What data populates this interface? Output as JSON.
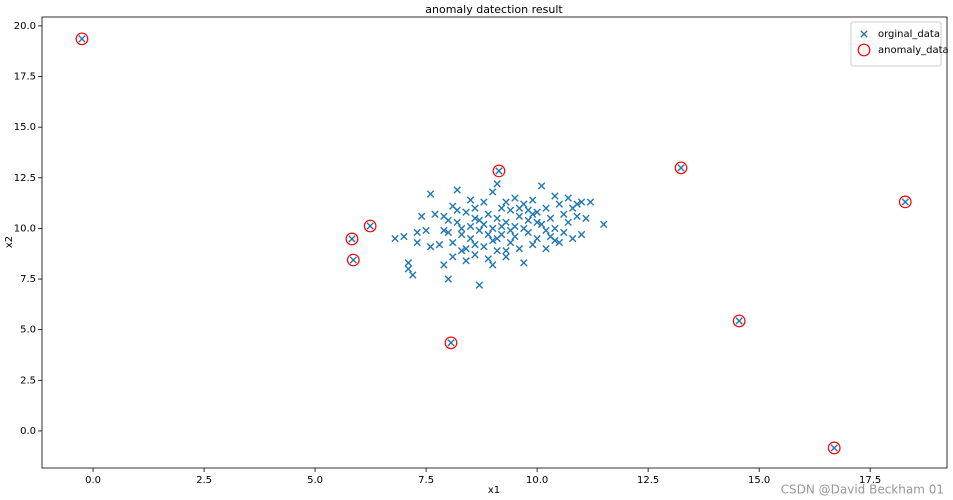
{
  "chart_data": {
    "type": "scatter",
    "title": "anomaly datection result",
    "x_label": "x1",
    "y_label": "x2",
    "xlim": [
      -1.15,
      19.23
    ],
    "ylim": [
      -1.83,
      20.44
    ],
    "xticks": [
      {
        "value": 0,
        "label": "0.0"
      },
      2.5,
      {
        "value": 5,
        "label": "5.0"
      },
      7.5,
      {
        "value": 10,
        "label": "10.0"
      },
      12.5,
      {
        "value": 15,
        "label": "15.0"
      },
      17.5
    ],
    "yticks": [
      {
        "value": 0,
        "label": "0.0"
      },
      2.5,
      {
        "value": 5,
        "label": "5.0"
      },
      7.5,
      {
        "value": 10,
        "label": "10.0"
      },
      12.5,
      {
        "value": 15,
        "label": "15.0"
      },
      17.5,
      {
        "value": 20,
        "label": "20.0"
      }
    ],
    "legend": "upper right",
    "grid": false,
    "series": [
      {
        "name": "orginal_data",
        "color": "#1f77b4",
        "marker": "x",
        "x": [
          7.0,
          6.8,
          7.1,
          7.2,
          7.1,
          7.3,
          7.4,
          7.5,
          7.6,
          7.7,
          7.8,
          7.9,
          7.9,
          8.0,
          8.0,
          8.1,
          8.1,
          8.2,
          8.2,
          8.3,
          8.3,
          8.4,
          8.4,
          8.5,
          8.5,
          8.6,
          8.6,
          8.7,
          8.7,
          8.7,
          8.8,
          8.8,
          8.9,
          8.9,
          9.0,
          9.0,
          9.0,
          9.1,
          9.1,
          9.1,
          9.2,
          9.2,
          9.3,
          9.3,
          9.4,
          9.4,
          9.5,
          9.5,
          9.6,
          9.6,
          9.7,
          9.7,
          9.8,
          9.8,
          9.9,
          9.9,
          10.0,
          10.0,
          10.1,
          10.1,
          10.2,
          10.2,
          10.3,
          10.3,
          10.4,
          10.4,
          10.5,
          10.5,
          10.6,
          10.6,
          10.7,
          10.7,
          10.8,
          10.8,
          10.9,
          11.0,
          11.0,
          11.1,
          11.2,
          11.5,
          7.6,
          7.9,
          8.2,
          8.4,
          8.6,
          8.8,
          8.9,
          9.0,
          9.2,
          9.3,
          9.5,
          9.6,
          9.8,
          10.0,
          10.2,
          8.1,
          8.5,
          9.4,
          9.7,
          10.9,
          7.3,
          8.0,
          8.3,
          9.1,
          9.9,
          10.4,
          8.6,
          9.3,
          -0.25,
          9.14,
          13.24,
          18.29,
          6.24,
          5.83,
          5.86,
          8.06,
          14.55,
          16.69
        ],
        "y": [
          9.6,
          9.5,
          8.3,
          7.7,
          8.0,
          9.3,
          10.6,
          9.9,
          11.7,
          10.7,
          9.2,
          10.6,
          8.2,
          7.5,
          9.8,
          11.1,
          9.3,
          11.9,
          10.3,
          8.9,
          9.7,
          10.8,
          8.4,
          10.1,
          9.5,
          11.0,
          8.7,
          10.4,
          9.9,
          7.2,
          11.3,
          9.1,
          10.7,
          8.5,
          10.0,
          11.8,
          9.4,
          12.2,
          10.5,
          8.9,
          9.7,
          11.0,
          10.3,
          8.6,
          10.9,
          9.3,
          11.5,
          10.1,
          9.0,
          10.6,
          8.3,
          11.2,
          9.8,
          10.4,
          11.4,
          9.2,
          10.8,
          9.5,
          12.1,
          10.2,
          9.0,
          11.0,
          10.5,
          9.6,
          11.6,
          10.0,
          9.3,
          11.2,
          10.7,
          9.8,
          11.5,
          10.3,
          9.5,
          11.0,
          10.6,
          9.7,
          11.3,
          10.5,
          11.3,
          10.2,
          9.1,
          9.9,
          10.9,
          9.0,
          10.5,
          10.2,
          9.7,
          8.2,
          10.1,
          11.3,
          9.6,
          11.0,
          10.9,
          10.3,
          9.9,
          8.6,
          11.4,
          9.9,
          10.0,
          11.2,
          9.8,
          10.4,
          10.0,
          9.5,
          10.7,
          9.4,
          9.2,
          8.9,
          19.36,
          12.84,
          12.99,
          11.31,
          10.12,
          9.48,
          8.44,
          4.35,
          5.43,
          -0.84
        ]
      },
      {
        "name": "anomaly_data",
        "color": "#ff0000",
        "marker": "circle",
        "x": [
          -0.25,
          9.14,
          13.24,
          18.29,
          6.24,
          5.83,
          5.86,
          8.06,
          14.55,
          16.69
        ],
        "y": [
          19.36,
          12.84,
          12.99,
          11.31,
          10.12,
          9.48,
          8.44,
          4.35,
          5.43,
          -0.84
        ]
      }
    ]
  },
  "watermark": "CSDN @David Beckham 01"
}
